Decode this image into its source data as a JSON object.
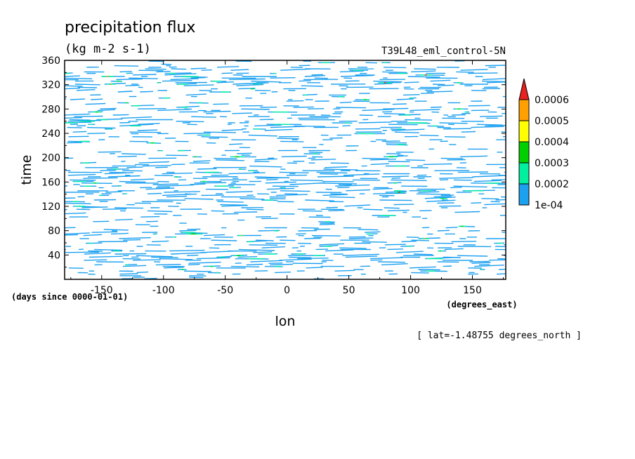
{
  "chart_data": {
    "type": "heatmap",
    "title": "precipitation flux",
    "units": "(kg m-2 s-1)",
    "run_label": "T39L48_eml_control-5N",
    "xlabel": "lon",
    "x_units": "(degrees_east)",
    "ylabel": "time",
    "y_units": "(days since 0000-01-01)",
    "slice_note": "[ lat=-1.48755 degrees_north ]",
    "xlim": [
      -180,
      177
    ],
    "ylim": [
      0,
      360
    ],
    "x_ticks": [
      {
        "value": -150,
        "label": "-150"
      },
      {
        "value": -100,
        "label": "-100"
      },
      {
        "value": -50,
        "label": "-50"
      },
      {
        "value": 0,
        "label": "0"
      },
      {
        "value": 50,
        "label": "50"
      },
      {
        "value": 100,
        "label": "100"
      },
      {
        "value": 150,
        "label": "150"
      }
    ],
    "y_ticks": [
      {
        "value": 40,
        "label": "40"
      },
      {
        "value": 80,
        "label": "80"
      },
      {
        "value": 120,
        "label": "120"
      },
      {
        "value": 160,
        "label": "160"
      },
      {
        "value": 200,
        "label": "200"
      },
      {
        "value": 240,
        "label": "240"
      },
      {
        "value": 280,
        "label": "280"
      },
      {
        "value": 320,
        "label": "320"
      },
      {
        "value": 360,
        "label": "360"
      }
    ],
    "colorbar": {
      "levels": [
        0.0001,
        0.0002,
        0.0003,
        0.0004,
        0.0005,
        0.0006
      ],
      "level_labels": [
        "1e-04",
        "0.0002",
        "0.0003",
        "0.0004",
        "0.0005",
        "0.0006"
      ],
      "colors": [
        "#1ca0f0",
        "#00f0a0",
        "#00d000",
        "#ffff00",
        "#ffa000",
        "#e82020"
      ],
      "extend": "max"
    },
    "colors": {
      "low": "#1ca0f0",
      "mid": "#00f0a0",
      "high1": "#00d000",
      "high2": "#ffff00",
      "high3": "#ffa000",
      "max": "#e82020"
    }
  }
}
